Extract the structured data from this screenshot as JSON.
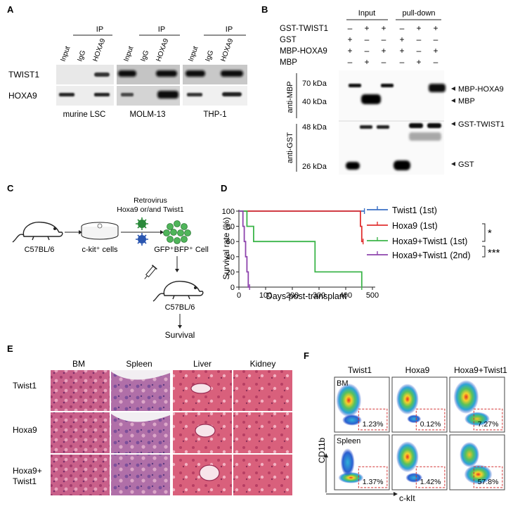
{
  "panelA": {
    "letter": "A",
    "ip": "IP",
    "lanes": [
      "Input",
      "IgG",
      "HOXA9"
    ],
    "rows": [
      "TWIST1",
      "HOXA9"
    ],
    "groups": [
      "murine LSC",
      "MOLM-13",
      "THP-1"
    ]
  },
  "panelB": {
    "letter": "B",
    "input": "Input",
    "pulldown": "pull-down",
    "rows": [
      {
        "label": "GST-TWIST1",
        "signs": [
          "–",
          "+",
          "+",
          "–",
          "+",
          "+"
        ]
      },
      {
        "label": "GST",
        "signs": [
          "+",
          "–",
          "–",
          "+",
          "–",
          "–"
        ]
      },
      {
        "label": "MBP-HOXA9",
        "signs": [
          "+",
          "–",
          "+",
          "+",
          "–",
          "+"
        ]
      },
      {
        "label": "MBP",
        "signs": [
          "–",
          "+",
          "–",
          "–",
          "+",
          "–"
        ]
      }
    ],
    "antiMBP": "anti-MBP",
    "antiGST": "anti-GST",
    "mw": [
      "70 kDa",
      "40 kDa",
      "48 kDa",
      "26 kDa"
    ],
    "bands": [
      "MBP-HOXA9",
      "MBP",
      "GST-TWIST1",
      "GST"
    ]
  },
  "panelC": {
    "letter": "C",
    "retro1": "Retrovirus",
    "retro2": "Hoxa9 or/and Twist1",
    "mouse1": "C57BL/6",
    "cells": "c-kit⁺ cells",
    "gfp": "GFP⁺BFP⁺ Cell",
    "mouse2": "C57BL/6",
    "survival": "Survival"
  },
  "panelD": {
    "letter": "D",
    "chart_data": {
      "type": "line",
      "xlabel": "Days post-transplant",
      "ylabel": "Survival rate (%)",
      "xlim": [
        0,
        500
      ],
      "ylim": [
        0,
        100
      ],
      "xticks": [
        "0",
        "100",
        "200",
        "300",
        "400",
        "500"
      ],
      "yticks": [
        "0",
        "20",
        "40",
        "60",
        "80",
        "100"
      ],
      "series": [
        {
          "name": "Twist1 (1st)",
          "color": "#3a6fc4",
          "points": [
            [
              0,
              100
            ],
            [
              470,
              100
            ]
          ]
        },
        {
          "name": "Hoxa9 (1st)",
          "color": "#e03030",
          "points": [
            [
              0,
              100
            ],
            [
              455,
              100
            ],
            [
              455,
              80
            ],
            [
              460,
              80
            ],
            [
              460,
              60
            ],
            [
              465,
              60
            ]
          ]
        },
        {
          "name": "Hoxa9+Twist1 (1st)",
          "color": "#3cb54a",
          "points": [
            [
              0,
              100
            ],
            [
              30,
              100
            ],
            [
              30,
              80
            ],
            [
              55,
              80
            ],
            [
              55,
              60
            ],
            [
              285,
              60
            ],
            [
              285,
              20
            ],
            [
              460,
              20
            ],
            [
              460,
              0
            ]
          ]
        },
        {
          "name": "Hoxa9+Twist1 (2nd)",
          "color": "#8e44ad",
          "points": [
            [
              0,
              100
            ],
            [
              15,
              100
            ],
            [
              15,
              80
            ],
            [
              20,
              80
            ],
            [
              20,
              60
            ],
            [
              25,
              60
            ],
            [
              25,
              40
            ],
            [
              30,
              40
            ],
            [
              30,
              20
            ],
            [
              35,
              20
            ],
            [
              35,
              0
            ],
            [
              40,
              0
            ]
          ]
        }
      ]
    },
    "sig1": "*",
    "sig2": "***"
  },
  "panelE": {
    "letter": "E",
    "cols": [
      "BM",
      "Spleen",
      "Liver",
      "Kidney"
    ],
    "rows": [
      "Twist1",
      "Hoxa9",
      "Hoxa9+",
      "Twist1"
    ]
  },
  "panelF": {
    "letter": "F",
    "cols": [
      "Twist1",
      "Hoxa9",
      "Hoxa9+Twist1"
    ],
    "rowBM": "BM",
    "rowSpleen": "Spleen",
    "yaxis": "CD11b",
    "xaxis": "c-kIt",
    "percents": [
      "1.23%",
      "0.12%",
      "7.27%",
      "1.37%",
      "1.42%",
      "57.8%"
    ]
  }
}
